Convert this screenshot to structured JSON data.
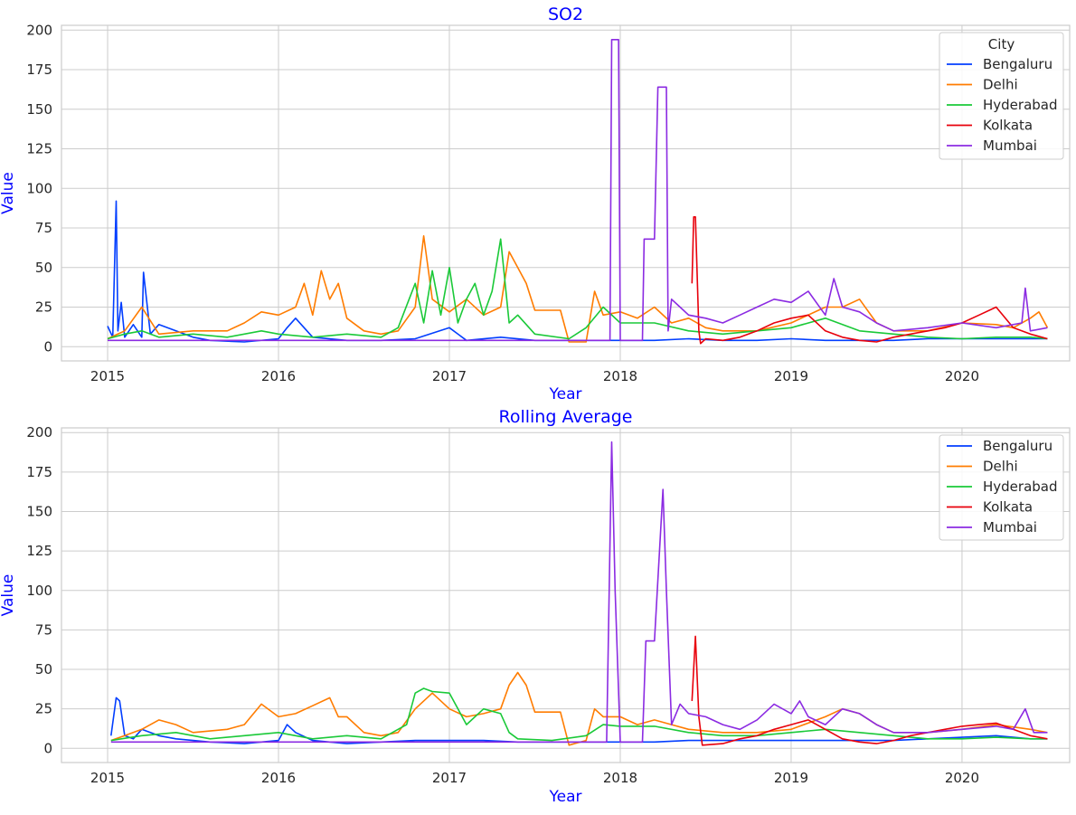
{
  "chart_data": [
    {
      "type": "line",
      "title": "SO2",
      "xlabel": "Year",
      "ylabel": "Value",
      "xlim": [
        2014.73,
        2020.63
      ],
      "ylim": [
        -9,
        203
      ],
      "xticks": [
        2015,
        2016,
        2017,
        2018,
        2019,
        2020
      ],
      "yticks": [
        0,
        25,
        50,
        75,
        100,
        125,
        150,
        175,
        200
      ],
      "legend": {
        "title": "City",
        "placement": "top-right"
      },
      "series": [
        {
          "name": "Bengaluru",
          "color": "#023eff",
          "x": [
            2015.0,
            2015.03,
            2015.05,
            2015.06,
            2015.08,
            2015.1,
            2015.15,
            2015.2,
            2015.21,
            2015.25,
            2015.3,
            2015.4,
            2015.5,
            2015.6,
            2015.8,
            2016.0,
            2016.05,
            2016.1,
            2016.2,
            2016.4,
            2016.6,
            2016.8,
            2017.0,
            2017.1,
            2017.3,
            2017.5,
            2017.7,
            2017.9,
            2018.0,
            2018.2,
            2018.4,
            2018.6,
            2018.8,
            2019.0,
            2019.2,
            2019.4,
            2019.6,
            2019.8,
            2020.0,
            2020.2,
            2020.4,
            2020.5
          ],
          "y": [
            13,
            6,
            92,
            10,
            28,
            6,
            14,
            6,
            47,
            8,
            14,
            10,
            6,
            4,
            3,
            5,
            12,
            18,
            6,
            4,
            4,
            5,
            12,
            4,
            6,
            4,
            4,
            4,
            4,
            4,
            5,
            4,
            4,
            5,
            4,
            4,
            4,
            5,
            5,
            5,
            5,
            5
          ]
        },
        {
          "name": "Delhi",
          "color": "#ff7c00",
          "x": [
            2015.0,
            2015.1,
            2015.2,
            2015.3,
            2015.5,
            2015.7,
            2015.8,
            2015.9,
            2016.0,
            2016.1,
            2016.15,
            2016.2,
            2016.25,
            2016.3,
            2016.35,
            2016.4,
            2016.5,
            2016.6,
            2016.7,
            2016.8,
            2016.85,
            2016.9,
            2017.0,
            2017.1,
            2017.2,
            2017.3,
            2017.35,
            2017.4,
            2017.45,
            2017.5,
            2017.65,
            2017.7,
            2017.8,
            2017.85,
            2017.9,
            2018.0,
            2018.1,
            2018.2,
            2018.3,
            2018.4,
            2018.5,
            2018.6,
            2018.8,
            2019.0,
            2019.2,
            2019.3,
            2019.4,
            2019.5,
            2019.6,
            2019.8,
            2020.0,
            2020.2,
            2020.3,
            2020.4,
            2020.45,
            2020.5
          ],
          "y": [
            5,
            10,
            25,
            8,
            10,
            10,
            15,
            22,
            20,
            25,
            40,
            20,
            48,
            30,
            40,
            18,
            10,
            8,
            10,
            25,
            70,
            30,
            22,
            30,
            20,
            25,
            60,
            50,
            40,
            23,
            23,
            3,
            3,
            35,
            20,
            22,
            18,
            25,
            15,
            18,
            12,
            10,
            10,
            15,
            25,
            25,
            30,
            15,
            10,
            10,
            15,
            14,
            12,
            18,
            22,
            12
          ]
        },
        {
          "name": "Hyderabad",
          "color": "#1ac938",
          "x": [
            2015.0,
            2015.1,
            2015.2,
            2015.3,
            2015.5,
            2015.7,
            2015.9,
            2016.0,
            2016.2,
            2016.4,
            2016.6,
            2016.7,
            2016.8,
            2016.85,
            2016.9,
            2016.95,
            2017.0,
            2017.05,
            2017.1,
            2017.15,
            2017.2,
            2017.25,
            2017.3,
            2017.35,
            2017.4,
            2017.5,
            2017.7,
            2017.8,
            2017.9,
            2018.0,
            2018.2,
            2018.4,
            2018.6,
            2018.8,
            2019.0,
            2019.2,
            2019.4,
            2019.6,
            2019.8,
            2020.0,
            2020.2,
            2020.4,
            2020.5
          ],
          "y": [
            5,
            8,
            10,
            6,
            8,
            6,
            10,
            8,
            6,
            8,
            6,
            12,
            40,
            15,
            48,
            20,
            50,
            15,
            30,
            40,
            20,
            35,
            68,
            15,
            20,
            8,
            5,
            12,
            25,
            15,
            15,
            10,
            8,
            10,
            12,
            18,
            10,
            8,
            6,
            5,
            6,
            6,
            5
          ]
        },
        {
          "name": "Kolkata",
          "color": "#e8000b",
          "x": [
            2018.42,
            2018.43,
            2018.44,
            2018.46,
            2018.47,
            2018.5,
            2018.6,
            2018.7,
            2018.8,
            2018.9,
            2019.0,
            2019.1,
            2019.2,
            2019.3,
            2019.4,
            2019.5,
            2019.6,
            2019.7,
            2019.8,
            2019.9,
            2020.0,
            2020.1,
            2020.2,
            2020.3,
            2020.4,
            2020.5
          ],
          "y": [
            40,
            82,
            82,
            10,
            2,
            5,
            4,
            6,
            10,
            15,
            18,
            20,
            10,
            6,
            4,
            3,
            6,
            8,
            10,
            12,
            15,
            20,
            25,
            12,
            8,
            5
          ]
        },
        {
          "name": "Mumbai",
          "color": "#8b2be2",
          "x": [
            2015.0,
            2015.5,
            2016.0,
            2016.5,
            2017.0,
            2017.5,
            2017.9,
            2017.94,
            2017.95,
            2017.99,
            2018.0,
            2018.13,
            2018.14,
            2018.2,
            2018.22,
            2018.27,
            2018.28,
            2018.3,
            2018.35,
            2018.4,
            2018.5,
            2018.6,
            2018.7,
            2018.8,
            2018.9,
            2019.0,
            2019.1,
            2019.2,
            2019.25,
            2019.3,
            2019.4,
            2019.5,
            2019.6,
            2019.8,
            2020.0,
            2020.2,
            2020.35,
            2020.37,
            2020.4,
            2020.5
          ],
          "y": [
            4,
            4,
            4,
            4,
            4,
            4,
            4,
            4,
            194,
            194,
            4,
            4,
            68,
            68,
            164,
            164,
            10,
            30,
            25,
            20,
            18,
            15,
            20,
            25,
            30,
            28,
            35,
            20,
            43,
            25,
            22,
            15,
            10,
            12,
            15,
            12,
            15,
            37,
            10,
            12
          ]
        }
      ]
    },
    {
      "type": "line",
      "title": "Rolling Average",
      "xlabel": "Year",
      "ylabel": "Value",
      "xlim": [
        2014.73,
        2020.63
      ],
      "ylim": [
        -9,
        203
      ],
      "xticks": [
        2015,
        2016,
        2017,
        2018,
        2019,
        2020
      ],
      "yticks": [
        0,
        25,
        50,
        75,
        100,
        125,
        150,
        175,
        200
      ],
      "legend": {
        "placement": "top-right"
      },
      "series": [
        {
          "name": "Bengaluru",
          "color": "#023eff",
          "x": [
            2015.02,
            2015.05,
            2015.07,
            2015.1,
            2015.15,
            2015.2,
            2015.3,
            2015.4,
            2015.6,
            2015.8,
            2016.0,
            2016.05,
            2016.1,
            2016.2,
            2016.4,
            2016.6,
            2016.8,
            2017.0,
            2017.2,
            2017.4,
            2017.6,
            2017.8,
            2018.0,
            2018.2,
            2018.4,
            2018.6,
            2018.8,
            2019.0,
            2019.2,
            2019.4,
            2019.6,
            2019.8,
            2020.0,
            2020.2,
            2020.4,
            2020.5
          ],
          "y": [
            8,
            32,
            30,
            8,
            6,
            12,
            8,
            6,
            4,
            3,
            5,
            15,
            10,
            5,
            3,
            4,
            5,
            5,
            5,
            4,
            4,
            4,
            4,
            4,
            5,
            5,
            5,
            5,
            5,
            5,
            5,
            6,
            7,
            8,
            6,
            6
          ]
        },
        {
          "name": "Delhi",
          "color": "#ff7c00",
          "x": [
            2015.02,
            2015.1,
            2015.2,
            2015.3,
            2015.4,
            2015.5,
            2015.7,
            2015.8,
            2015.9,
            2016.0,
            2016.1,
            2016.2,
            2016.3,
            2016.35,
            2016.4,
            2016.5,
            2016.6,
            2016.7,
            2016.8,
            2016.9,
            2017.0,
            2017.1,
            2017.2,
            2017.3,
            2017.35,
            2017.4,
            2017.45,
            2017.5,
            2017.65,
            2017.7,
            2017.8,
            2017.85,
            2017.9,
            2018.0,
            2018.1,
            2018.2,
            2018.3,
            2018.4,
            2018.6,
            2018.8,
            2019.0,
            2019.2,
            2019.3,
            2019.4,
            2019.5,
            2019.6,
            2019.8,
            2020.0,
            2020.2,
            2020.4,
            2020.5
          ],
          "y": [
            5,
            8,
            12,
            18,
            15,
            10,
            12,
            15,
            28,
            20,
            22,
            27,
            32,
            20,
            20,
            10,
            8,
            10,
            25,
            35,
            25,
            20,
            22,
            25,
            40,
            48,
            40,
            23,
            23,
            2,
            5,
            25,
            20,
            20,
            15,
            18,
            15,
            12,
            10,
            10,
            12,
            20,
            25,
            22,
            15,
            10,
            10,
            12,
            15,
            12,
            10
          ]
        },
        {
          "name": "Hyderabad",
          "color": "#1ac938",
          "x": [
            2015.02,
            2015.2,
            2015.4,
            2015.6,
            2015.8,
            2016.0,
            2016.2,
            2016.4,
            2016.6,
            2016.75,
            2016.8,
            2016.85,
            2016.9,
            2017.0,
            2017.1,
            2017.2,
            2017.3,
            2017.35,
            2017.4,
            2017.6,
            2017.8,
            2017.9,
            2018.0,
            2018.2,
            2018.4,
            2018.6,
            2018.8,
            2019.0,
            2019.2,
            2019.4,
            2019.6,
            2019.8,
            2020.0,
            2020.2,
            2020.4,
            2020.5
          ],
          "y": [
            5,
            8,
            10,
            6,
            8,
            10,
            6,
            8,
            6,
            15,
            35,
            38,
            36,
            35,
            15,
            25,
            22,
            10,
            6,
            5,
            8,
            15,
            14,
            14,
            10,
            8,
            8,
            10,
            12,
            10,
            8,
            6,
            6,
            7,
            6,
            6
          ]
        },
        {
          "name": "Kolkata",
          "color": "#e8000b",
          "x": [
            2018.42,
            2018.44,
            2018.46,
            2018.48,
            2018.6,
            2018.7,
            2018.8,
            2018.9,
            2019.0,
            2019.1,
            2019.2,
            2019.3,
            2019.4,
            2019.5,
            2019.6,
            2019.7,
            2019.8,
            2019.9,
            2020.0,
            2020.1,
            2020.2,
            2020.3,
            2020.4,
            2020.5
          ],
          "y": [
            30,
            71,
            20,
            2,
            3,
            6,
            8,
            12,
            15,
            18,
            12,
            6,
            4,
            3,
            5,
            8,
            10,
            12,
            14,
            15,
            16,
            12,
            8,
            6
          ]
        },
        {
          "name": "Mumbai",
          "color": "#8b2be2",
          "x": [
            2015.02,
            2015.5,
            2016.0,
            2016.5,
            2017.0,
            2017.5,
            2017.92,
            2017.95,
            2017.97,
            2018.0,
            2018.13,
            2018.15,
            2018.2,
            2018.25,
            2018.27,
            2018.3,
            2018.35,
            2018.4,
            2018.5,
            2018.6,
            2018.7,
            2018.8,
            2018.9,
            2019.0,
            2019.05,
            2019.1,
            2019.2,
            2019.3,
            2019.4,
            2019.5,
            2019.6,
            2019.8,
            2020.0,
            2020.2,
            2020.3,
            2020.37,
            2020.42,
            2020.5
          ],
          "y": [
            4,
            4,
            4,
            4,
            4,
            4,
            4,
            194,
            100,
            4,
            4,
            68,
            68,
            164,
            100,
            15,
            28,
            22,
            20,
            15,
            12,
            18,
            28,
            22,
            30,
            20,
            15,
            25,
            22,
            15,
            10,
            10,
            12,
            14,
            12,
            25,
            10,
            10
          ]
        }
      ]
    }
  ]
}
